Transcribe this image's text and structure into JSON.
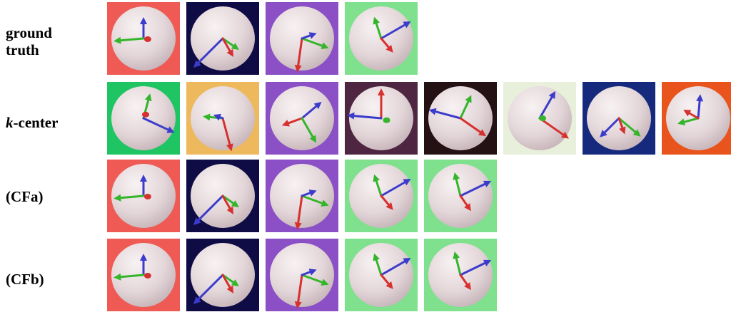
{
  "rows": [
    {
      "label_lines": [
        "ground",
        "truth"
      ],
      "tiles": [
        {
          "bg": "#ef5a55",
          "arrows": [
            {
              "c": "#3c3ccc",
              "a": 90,
              "l": 30
            },
            {
              "c": "#35b52b",
              "a": 185,
              "l": 42
            },
            {
              "c": "#d6312f",
              "a": -10,
              "l": 6
            }
          ]
        },
        {
          "bg": "#0f0c45",
          "arrows": [
            {
              "c": "#3c3ccc",
              "a": 225,
              "l": 58
            },
            {
              "c": "#35b52b",
              "a": -35,
              "l": 28
            },
            {
              "c": "#d6312f",
              "a": -60,
              "l": 30
            }
          ]
        },
        {
          "bg": "#8b4fc6",
          "arrows": [
            {
              "c": "#d6312f",
              "a": 262,
              "l": 48
            },
            {
              "c": "#35b52b",
              "a": -20,
              "l": 40
            },
            {
              "c": "#3c3ccc",
              "a": 20,
              "l": 22
            }
          ]
        },
        {
          "bg": "#7fe08d",
          "arrows": [
            {
              "c": "#35b52b",
              "a": 108,
              "l": 32
            },
            {
              "c": "#3c3ccc",
              "a": 30,
              "l": 48
            },
            {
              "c": "#d6312f",
              "a": -50,
              "l": 26
            }
          ]
        }
      ]
    },
    {
      "label_prefix": "k",
      "label_text": "-center",
      "tiles": [
        {
          "bg": "#1fc562",
          "arrows": [
            {
              "c": "#35b52b",
              "a": 75,
              "l": 36
            },
            {
              "c": "#3c3ccc",
              "a": -25,
              "l": 48
            },
            {
              "c": "#d6312f",
              "a": 60,
              "l": 6
            }
          ]
        },
        {
          "bg": "#edb95c",
          "arrows": [
            {
              "c": "#d6312f",
              "a": -75,
              "l": 48
            },
            {
              "c": "#35b52b",
              "a": 175,
              "l": 28
            },
            {
              "c": "#3c3ccc",
              "a": 160,
              "l": 14
            }
          ]
        },
        {
          "bg": "#8b4fc6",
          "arrows": [
            {
              "c": "#3c3ccc",
              "a": 40,
              "l": 36
            },
            {
              "c": "#d6312f",
              "a": 200,
              "l": 30
            },
            {
              "c": "#35b52b",
              "a": -60,
              "l": 40
            }
          ]
        },
        {
          "bg": "#4e2641",
          "arrows": [
            {
              "c": "#d6312f",
              "a": 90,
              "l": 42
            },
            {
              "c": "#3c3ccc",
              "a": 175,
              "l": 48
            },
            {
              "c": "#35b52b",
              "a": -20,
              "l": 8
            }
          ]
        },
        {
          "bg": "#241114",
          "arrows": [
            {
              "c": "#35b52b",
              "a": 65,
              "l": 36
            },
            {
              "c": "#3c3ccc",
              "a": 165,
              "l": 46
            },
            {
              "c": "#d6312f",
              "a": -35,
              "l": 44
            }
          ]
        },
        {
          "bg": "#e8f0dc",
          "arrows": [
            {
              "c": "#3c3ccc",
              "a": 60,
              "l": 44
            },
            {
              "c": "#d6312f",
              "a": -35,
              "l": 50
            },
            {
              "c": "#35b52b",
              "a": 0,
              "l": 4
            }
          ]
        },
        {
          "bg": "#15297d",
          "arrows": [
            {
              "c": "#35b52b",
              "a": -40,
              "l": 40
            },
            {
              "c": "#3c3ccc",
              "a": 225,
              "l": 38
            },
            {
              "c": "#d6312f",
              "a": -70,
              "l": 24
            }
          ]
        },
        {
          "bg": "#e8541c",
          "arrows": [
            {
              "c": "#3c3ccc",
              "a": 85,
              "l": 34
            },
            {
              "c": "#35b52b",
              "a": 195,
              "l": 30
            },
            {
              "c": "#d6312f",
              "a": 150,
              "l": 24
            }
          ]
        }
      ]
    },
    {
      "label_lines": [
        "(CFa)"
      ],
      "tiles": [
        {
          "bg": "#ef5a55",
          "arrows": [
            {
              "c": "#3c3ccc",
              "a": 90,
              "l": 30
            },
            {
              "c": "#35b52b",
              "a": 185,
              "l": 42
            },
            {
              "c": "#d6312f",
              "a": -10,
              "l": 6
            }
          ]
        },
        {
          "bg": "#0f0c45",
          "arrows": [
            {
              "c": "#3c3ccc",
              "a": 225,
              "l": 58
            },
            {
              "c": "#35b52b",
              "a": -35,
              "l": 28
            },
            {
              "c": "#d6312f",
              "a": -60,
              "l": 30
            }
          ]
        },
        {
          "bg": "#8b4fc6",
          "arrows": [
            {
              "c": "#d6312f",
              "a": 262,
              "l": 48
            },
            {
              "c": "#35b52b",
              "a": -20,
              "l": 40
            },
            {
              "c": "#3c3ccc",
              "a": 20,
              "l": 22
            }
          ]
        },
        {
          "bg": "#7fe08d",
          "arrows": [
            {
              "c": "#35b52b",
              "a": 108,
              "l": 32
            },
            {
              "c": "#3c3ccc",
              "a": 30,
              "l": 48
            },
            {
              "c": "#d6312f",
              "a": -50,
              "l": 26
            }
          ]
        },
        {
          "bg": "#7fe08d",
          "arrows": [
            {
              "c": "#35b52b",
              "a": 104,
              "l": 34
            },
            {
              "c": "#3c3ccc",
              "a": 26,
              "l": 48
            },
            {
              "c": "#d6312f",
              "a": -55,
              "l": 26
            }
          ]
        }
      ]
    },
    {
      "label_lines": [
        "(CFb)"
      ],
      "tiles": [
        {
          "bg": "#ef5a55",
          "arrows": [
            {
              "c": "#3c3ccc",
              "a": 90,
              "l": 30
            },
            {
              "c": "#35b52b",
              "a": 185,
              "l": 42
            },
            {
              "c": "#d6312f",
              "a": -10,
              "l": 6
            }
          ]
        },
        {
          "bg": "#0f0c45",
          "arrows": [
            {
              "c": "#3c3ccc",
              "a": 225,
              "l": 58
            },
            {
              "c": "#35b52b",
              "a": -35,
              "l": 28
            },
            {
              "c": "#d6312f",
              "a": -60,
              "l": 30
            }
          ]
        },
        {
          "bg": "#8b4fc6",
          "arrows": [
            {
              "c": "#d6312f",
              "a": 262,
              "l": 48
            },
            {
              "c": "#35b52b",
              "a": -20,
              "l": 40
            },
            {
              "c": "#3c3ccc",
              "a": 20,
              "l": 22
            }
          ]
        },
        {
          "bg": "#7fe08d",
          "arrows": [
            {
              "c": "#35b52b",
              "a": 108,
              "l": 32
            },
            {
              "c": "#3c3ccc",
              "a": 30,
              "l": 48
            },
            {
              "c": "#d6312f",
              "a": -50,
              "l": 26
            }
          ]
        },
        {
          "bg": "#7fe08d",
          "arrows": [
            {
              "c": "#35b52b",
              "a": 104,
              "l": 34
            },
            {
              "c": "#3c3ccc",
              "a": 26,
              "l": 48
            },
            {
              "c": "#d6312f",
              "a": -55,
              "l": 26
            }
          ]
        }
      ]
    }
  ]
}
